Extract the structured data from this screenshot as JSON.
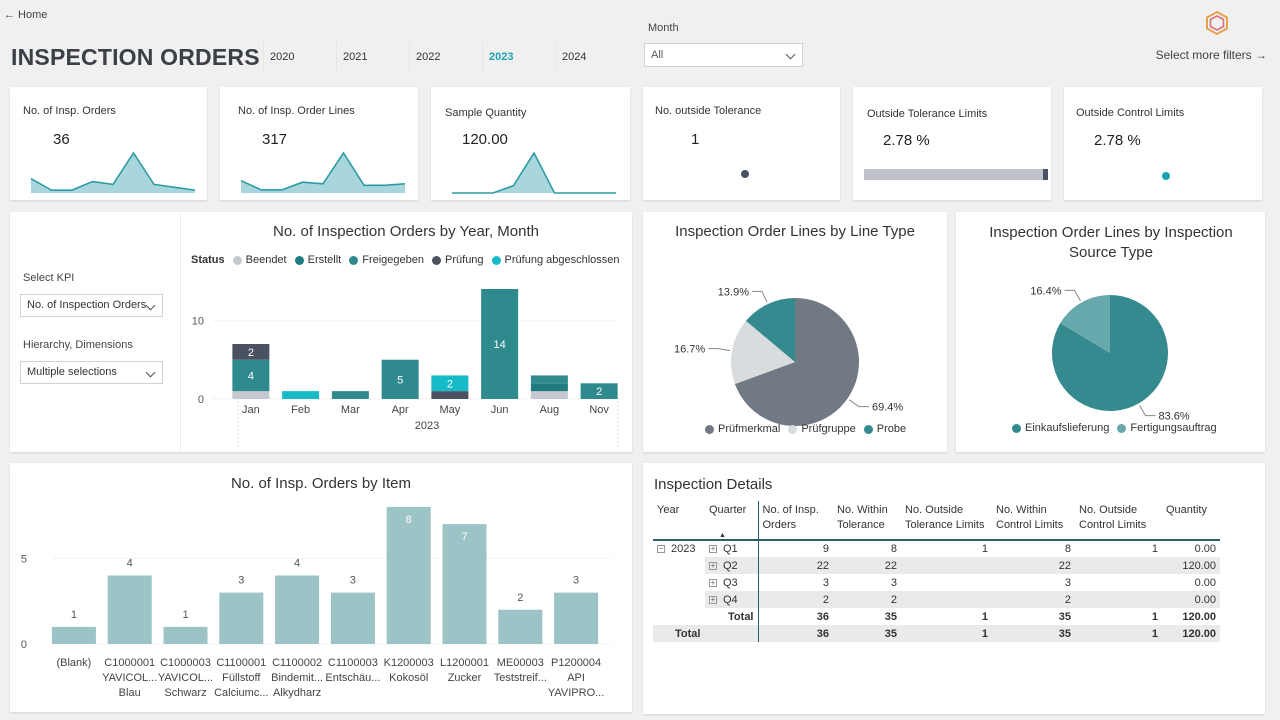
{
  "header": {
    "home_link": "← Home",
    "title": "INSPECTION ORDERS",
    "years": [
      "2020",
      "2021",
      "2022",
      "2023",
      "2024"
    ],
    "active_year": "2023",
    "month_label": "Month",
    "month_value": "All",
    "more_filters": "Select more filters →"
  },
  "kpis": [
    {
      "title": "No. of Insp. Orders",
      "value": "36",
      "sparkline": [
        5,
        1,
        1,
        4,
        3,
        14,
        3,
        2,
        1
      ]
    },
    {
      "title": "No. of Insp. Order Lines",
      "value": "317",
      "sparkline": [
        40,
        10,
        10,
        35,
        30,
        130,
        25,
        25,
        30
      ]
    },
    {
      "title": "Sample Quantity",
      "value": "120.00",
      "sparkline": [
        0,
        0,
        0,
        22,
        120,
        0,
        0,
        0,
        0
      ]
    },
    {
      "title": "No. outside Tolerance",
      "value": "1"
    },
    {
      "title": "Outside Tolerance Limits",
      "value": "2.78 %",
      "bar_fraction": 0.0278
    },
    {
      "title": "Outside Control Limits",
      "value": "2.78 %"
    }
  ],
  "colors": {
    "beendet": "#c5c9cf",
    "erstellt": "#1f7b7f",
    "freigegeben": "#2f8a8e",
    "pruefung": "#4a5160",
    "pruefung_abgeschlossen": "#17bbc7",
    "teal": "#348a8f",
    "grey": "#717983",
    "light_grey": "#d9dcdf",
    "light_teal": "#66a8ab",
    "item_bar": "#9cc3c5",
    "spark_fill": "#a9d6dc",
    "spark_line": "#2d9ba6"
  },
  "slicers": {
    "kpi_label": "Select KPI",
    "kpi_value": "No. of Inspection Orders",
    "hier_label": "Hierarchy, Dimensions",
    "hier_value": "Multiple selections"
  },
  "chart_data": [
    {
      "type": "bar",
      "title": "No. of Inspection Orders by Year, Month",
      "stacked": true,
      "legend_title": "Status",
      "categories": [
        "Jan",
        "Feb",
        "Mar",
        "Apr",
        "May",
        "Jun",
        "Aug",
        "Nov"
      ],
      "group_label": "2023",
      "yticks": [
        0,
        10
      ],
      "ylim": [
        0,
        14
      ],
      "series": [
        {
          "name": "Beendet",
          "values": [
            1,
            0,
            0,
            0,
            0,
            0,
            1,
            0
          ]
        },
        {
          "name": "Erstellt",
          "values": [
            0,
            0,
            0,
            0,
            0,
            0,
            1,
            0
          ]
        },
        {
          "name": "Freigegeben",
          "values": [
            4,
            0,
            1,
            5,
            0,
            14,
            1,
            2
          ]
        },
        {
          "name": "Prüfung",
          "values": [
            2,
            0,
            0,
            0,
            1,
            0,
            0,
            0
          ]
        },
        {
          "name": "Prüfung abgeschlossen",
          "values": [
            0,
            1,
            0,
            0,
            2,
            0,
            0,
            0
          ]
        }
      ]
    },
    {
      "type": "pie",
      "title": "Inspection Order Lines by Line Type",
      "labels": [
        "Prüfmerkmal",
        "Prüfgruppe",
        "Probe"
      ],
      "values": [
        69.4,
        16.7,
        13.9
      ],
      "value_labels": [
        "69.4%",
        "16.7%",
        "13.9%"
      ]
    },
    {
      "type": "pie",
      "title": "Inspection Order Lines by Inspection Source Type",
      "labels": [
        "Einkaufslieferung",
        "Fertigungsauftrag"
      ],
      "values": [
        83.6,
        16.4
      ],
      "value_labels": [
        "83.6%",
        "16.4%"
      ]
    },
    {
      "type": "bar",
      "title": "No. of Insp. Orders by Item",
      "categories": [
        [
          "(Blank)"
        ],
        [
          "C1000001",
          "YAVICOL...",
          "Blau"
        ],
        [
          "C1000003",
          "YAVICOL...",
          "Schwarz"
        ],
        [
          "C1100001",
          "Füllstoff",
          "Calciumc..."
        ],
        [
          "C1100002",
          "Bindemit...",
          "Alkydharz"
        ],
        [
          "C1100003",
          "Entschäu..."
        ],
        [
          "K1200003",
          "Kokosöl"
        ],
        [
          "L1200001",
          "Zucker"
        ],
        [
          "ME00003",
          "Teststreif..."
        ],
        [
          "P1200004",
          "API",
          "YAVIPRO..."
        ]
      ],
      "values": [
        1,
        4,
        1,
        3,
        4,
        3,
        8,
        7,
        2,
        3
      ],
      "yticks": [
        0,
        5
      ],
      "ylim": [
        0,
        8
      ]
    }
  ],
  "details": {
    "title": "Inspection Details",
    "columns": [
      "Year",
      "Quarter",
      "No. of Insp. Orders",
      "No. Within Tolerance",
      "No. Outside Tolerance Limits",
      "No. Within Control Limits",
      "No. Outside Control Limits",
      "Quantity"
    ],
    "year": "2023",
    "rows": [
      {
        "quarter": "Q1",
        "orders": "9",
        "within_tol": "8",
        "outside_tol": "1",
        "within_ctrl": "8",
        "outside_ctrl": "1",
        "qty": "0.00"
      },
      {
        "quarter": "Q2",
        "orders": "22",
        "within_tol": "22",
        "outside_tol": "",
        "within_ctrl": "22",
        "outside_ctrl": "",
        "qty": "120.00"
      },
      {
        "quarter": "Q3",
        "orders": "3",
        "within_tol": "3",
        "outside_tol": "",
        "within_ctrl": "3",
        "outside_ctrl": "",
        "qty": "0.00"
      },
      {
        "quarter": "Q4",
        "orders": "2",
        "within_tol": "2",
        "outside_tol": "",
        "within_ctrl": "2",
        "outside_ctrl": "",
        "qty": "0.00"
      }
    ],
    "subtotal": {
      "label": "Total",
      "orders": "36",
      "within_tol": "35",
      "outside_tol": "1",
      "within_ctrl": "35",
      "outside_ctrl": "1",
      "qty": "120.00"
    },
    "grand_total": {
      "label": "Total",
      "orders": "36",
      "within_tol": "35",
      "outside_tol": "1",
      "within_ctrl": "35",
      "outside_ctrl": "1",
      "qty": "120.00"
    }
  }
}
